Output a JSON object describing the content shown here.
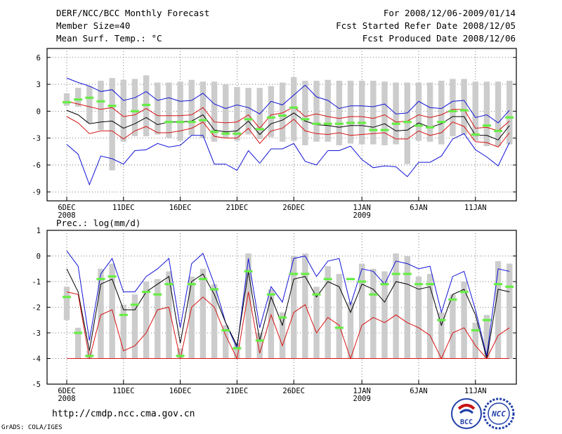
{
  "header": {
    "title": "DERF/NCC/BCC Monthly Forecast",
    "member_size": "Member Size=40",
    "variable": "Mean Surf. Temp.: °C",
    "forecast_period": "For 2008/12/06-2009/01/14",
    "started_refer": "Fcst Started Refer Date 2008/12/05",
    "produced": "Fcst Produced Date 2008/12/06"
  },
  "precip_label": "Prec.: log(mm/d)",
  "footer": {
    "url": "http://cmdp.ncc.cma.gov.cn",
    "grads": "GrADS: COLA/IGES",
    "logo_bcc": "BCC",
    "logo_ncc": "NCC"
  },
  "colors": {
    "blue": "#1414d8",
    "red": "#d81414",
    "black": "#000000",
    "green": "#66ee44",
    "bar": "#cccccc"
  },
  "chart_data": [
    {
      "type": "line",
      "title": "Mean Surf. Temp.: °C",
      "ylim": [
        -10,
        7
      ],
      "yticks": [
        6,
        3,
        0,
        -3,
        -6,
        -9
      ],
      "x_tick_labels": [
        {
          "day": 0,
          "label": "6DEC",
          "sub": "2008"
        },
        {
          "day": 5,
          "label": "11DEC"
        },
        {
          "day": 10,
          "label": "16DEC"
        },
        {
          "day": 15,
          "label": "21DEC"
        },
        {
          "day": 20,
          "label": "26DEC"
        },
        {
          "day": 26,
          "label": "1JAN",
          "sub": "2009"
        },
        {
          "day": 31,
          "label": "6JAN"
        },
        {
          "day": 36,
          "label": "11JAN"
        }
      ],
      "series": [
        {
          "name": "ensemble max",
          "color": "blue",
          "values": [
            3.7,
            3.2,
            2.8,
            2.2,
            2.4,
            1.2,
            1.5,
            2.2,
            1.2,
            1.5,
            1.1,
            1.2,
            2.0,
            0.8,
            0.3,
            0.7,
            0.4,
            -0.3,
            1.1,
            0.7,
            1.8,
            2.9,
            1.6,
            1.2,
            0.3,
            0.6,
            0.6,
            0.5,
            0.8,
            -0.3,
            -0.2,
            1.1,
            0.4,
            0.3,
            1.1,
            1.2,
            -0.7,
            -0.4,
            -1.3,
            0.1
          ]
        },
        {
          "name": "upper",
          "color": "red",
          "values": [
            1.1,
            0.8,
            0.5,
            0.2,
            0.4,
            -0.6,
            -0.4,
            0.3,
            -0.5,
            -0.5,
            -0.5,
            -0.4,
            0.4,
            -1.2,
            -1.3,
            -1.2,
            -0.4,
            -1.9,
            -0.4,
            -0.2,
            0.5,
            -0.6,
            -0.3,
            -0.6,
            -0.8,
            -0.6,
            -0.6,
            -0.8,
            -0.4,
            -1.2,
            -1.1,
            -0.4,
            -0.7,
            -0.4,
            0.2,
            0.2,
            -1.9,
            -1.8,
            -2.2,
            -1.1
          ]
        },
        {
          "name": "ensemble mean",
          "color": "black",
          "values": [
            0.1,
            -0.4,
            -1.4,
            -1.2,
            -1.1,
            -1.9,
            -1.4,
            -0.7,
            -1.5,
            -1.2,
            -1.2,
            -1.1,
            -0.4,
            -2.1,
            -2.3,
            -2.2,
            -1.1,
            -2.6,
            -1.4,
            -1.0,
            -0.2,
            -1.1,
            -1.5,
            -1.6,
            -1.8,
            -1.6,
            -1.6,
            -1.8,
            -1.4,
            -2.2,
            -2.1,
            -1.3,
            -1.8,
            -1.4,
            -0.6,
            -0.6,
            -2.7,
            -2.7,
            -3.2,
            -1.6
          ]
        },
        {
          "name": "lower",
          "color": "red",
          "values": [
            -0.6,
            -1.3,
            -2.5,
            -2.2,
            -2.2,
            -3.1,
            -2.2,
            -1.7,
            -2.4,
            -2.4,
            -2.2,
            -1.9,
            -1.2,
            -2.8,
            -3.0,
            -3.0,
            -1.9,
            -3.6,
            -2.2,
            -1.9,
            -0.9,
            -2.2,
            -2.5,
            -2.6,
            -2.4,
            -2.7,
            -2.6,
            -2.5,
            -2.4,
            -3.1,
            -3.1,
            -2.2,
            -2.7,
            -2.4,
            -1.2,
            -1.7,
            -3.4,
            -3.5,
            -4.0,
            -2.4
          ]
        },
        {
          "name": "ensemble min",
          "color": "blue",
          "values": [
            -3.7,
            -4.8,
            -8.2,
            -5.0,
            -5.3,
            -5.9,
            -4.4,
            -4.3,
            -3.6,
            -4.0,
            -3.8,
            -2.7,
            -2.7,
            -5.9,
            -5.9,
            -6.6,
            -4.4,
            -5.8,
            -4.2,
            -4.2,
            -3.6,
            -5.6,
            -6.0,
            -4.4,
            -4.4,
            -3.9,
            -5.4,
            -6.3,
            -6.1,
            -6.2,
            -7.3,
            -5.7,
            -5.7,
            -5.0,
            -3.1,
            -2.5,
            -4.3,
            -5.1,
            -6.1,
            -3.5
          ]
        },
        {
          "name": "observation",
          "color": "green",
          "values": [
            1.0,
            1.3,
            1.5,
            1.1,
            0.6,
            null,
            0.0,
            0.7,
            null,
            -1.2,
            -1.2,
            -1.2,
            -1.0,
            -2.3,
            -2.5,
            -2.5,
            -0.9,
            -2.0,
            -0.7,
            -0.5,
            0.4,
            -0.9,
            -1.4,
            -1.4,
            -1.4,
            -1.3,
            -1.3,
            -2.1,
            -2.1,
            -1.4,
            -1.2,
            -1.6,
            -1.8,
            -1.2,
            0.0,
            0.1,
            -2.6,
            -1.6,
            -2.2,
            -0.7
          ]
        }
      ],
      "bars": {
        "name": "observed range",
        "color": "bar",
        "high": [
          2.0,
          2.6,
          2.8,
          3.4,
          3.7,
          3.5,
          3.6,
          4.0,
          3.2,
          3.2,
          3.3,
          3.5,
          3.3,
          3.3,
          3.0,
          2.7,
          2.6,
          2.6,
          2.8,
          3.2,
          3.8,
          3.4,
          3.4,
          3.5,
          3.4,
          3.4,
          3.4,
          3.4,
          3.3,
          3.2,
          3.2,
          3.2,
          3.2,
          3.4,
          3.6,
          3.6,
          3.3,
          3.3,
          3.3,
          3.4
        ],
        "low": [
          0.6,
          0.5,
          -1.3,
          -2.1,
          -6.6,
          -3.4,
          -2.8,
          -2.8,
          -2.6,
          -3.0,
          -3.3,
          -2.7,
          -3.0,
          -3.4,
          -3.0,
          -3.3,
          -2.6,
          -3.1,
          -2.9,
          -3.4,
          -3.3,
          -3.8,
          -3.4,
          -3.4,
          -3.8,
          -3.6,
          -3.7,
          -3.7,
          -3.8,
          -3.7,
          -5.9,
          -3.3,
          -3.4,
          -3.7,
          -2.8,
          -2.6,
          -3.3,
          -3.9,
          -3.9,
          -3.7
        ]
      }
    },
    {
      "type": "line",
      "title": "Prec.: log(mm/d)",
      "ylim": [
        -5,
        1
      ],
      "yticks": [
        1,
        0,
        -1,
        -2,
        -3,
        -4,
        -5
      ],
      "x_tick_labels": [
        {
          "day": 0,
          "label": "6DEC",
          "sub": "2008"
        },
        {
          "day": 5,
          "label": "11DEC"
        },
        {
          "day": 10,
          "label": "16DEC"
        },
        {
          "day": 15,
          "label": "21DEC"
        },
        {
          "day": 20,
          "label": "26DEC"
        },
        {
          "day": 26,
          "label": "1JAN",
          "sub": "2009"
        },
        {
          "day": 31,
          "label": "6JAN"
        },
        {
          "day": 36,
          "label": "11JAN"
        }
      ],
      "series": [
        {
          "name": "ensemble max",
          "color": "blue",
          "values": [
            0.2,
            -0.4,
            -3.3,
            -0.7,
            -0.1,
            -1.4,
            -1.4,
            -0.8,
            -0.5,
            -0.1,
            -2.8,
            -0.3,
            0.1,
            -1.1,
            -2.6,
            -3.6,
            -0.1,
            -2.8,
            -1.2,
            -1.8,
            -0.1,
            0.0,
            -0.8,
            -0.2,
            -0.1,
            -1.9,
            -0.5,
            -0.6,
            -1.1,
            -0.2,
            -0.3,
            -0.5,
            -0.4,
            -2.2,
            -0.8,
            -0.6,
            -2.1,
            -3.9,
            -0.5,
            -0.6
          ]
        },
        {
          "name": "ensemble mean",
          "color": "black",
          "values": [
            -0.5,
            -1.4,
            -3.7,
            -1.1,
            -0.9,
            -2.1,
            -2.1,
            -1.4,
            -1.1,
            -0.8,
            -3.4,
            -1.0,
            -0.7,
            -1.5,
            -2.6,
            -3.5,
            -0.6,
            -3.3,
            -1.6,
            -2.7,
            -0.9,
            -0.8,
            -1.6,
            -1.0,
            -1.2,
            -2.2,
            -1.1,
            -1.3,
            -1.8,
            -1.0,
            -1.1,
            -1.3,
            -1.2,
            -2.7,
            -1.5,
            -1.3,
            -2.3,
            -4.0,
            -1.3,
            -1.4
          ]
        },
        {
          "name": "lower",
          "color": "red",
          "values": [
            -1.4,
            -1.5,
            -4.0,
            -2.3,
            -2.1,
            -3.7,
            -3.5,
            -3.0,
            -2.1,
            -2.0,
            -4.0,
            -2.0,
            -1.6,
            -2.0,
            -3.1,
            -4.0,
            -1.4,
            -3.8,
            -2.3,
            -3.5,
            -2.2,
            -1.9,
            -3.0,
            -2.4,
            -2.7,
            -4.0,
            -2.7,
            -2.4,
            -2.6,
            -2.3,
            -2.6,
            -2.8,
            -3.1,
            -4.0,
            -3.0,
            -2.8,
            -3.5,
            -4.0,
            -3.1,
            -2.8
          ]
        },
        {
          "name": "floor",
          "color": "red",
          "values": [
            -4,
            -4,
            -4,
            -4,
            -4,
            -4,
            -4,
            -4,
            -4,
            -4,
            -4,
            -4,
            -4,
            -4,
            -4,
            -4,
            -4,
            -4,
            -4,
            -4,
            -4,
            -4,
            -4,
            -4,
            -4,
            -4,
            -4,
            -4,
            -4,
            -4,
            -4,
            -4,
            -4,
            -4,
            -4,
            -4,
            -4,
            -4,
            -4,
            -4
          ]
        },
        {
          "name": "observation",
          "color": "green",
          "values": [
            -1.6,
            -3.0,
            -3.9,
            -0.9,
            -0.8,
            -2.3,
            -1.9,
            -1.4,
            -1.5,
            -1.1,
            -3.9,
            -1.1,
            -0.9,
            -1.3,
            -2.9,
            -3.6,
            -0.6,
            -3.3,
            -1.5,
            -2.4,
            -0.7,
            -0.7,
            -1.5,
            -0.9,
            -2.8,
            -0.9,
            -1.0,
            -1.5,
            -1.1,
            -0.7,
            -0.7,
            -1.1,
            -1.1,
            -2.5,
            -1.7,
            -1.4,
            -2.9,
            -2.5,
            -1.1,
            -1.2
          ]
        }
      ],
      "bars": {
        "name": "observed range",
        "color": "bar",
        "high": [
          -1.2,
          -2.8,
          -3.7,
          -0.5,
          -0.3,
          -1.9,
          -1.5,
          -1.0,
          -0.9,
          -0.6,
          -3.6,
          -0.8,
          -0.5,
          -1.1,
          -2.7,
          -3.4,
          0.1,
          -3.0,
          -1.3,
          -2.2,
          0.0,
          0.1,
          -1.2,
          -0.4,
          -0.7,
          -1.8,
          -0.3,
          -0.5,
          -0.6,
          0.1,
          0.0,
          -0.8,
          -0.7,
          -2.2,
          -1.5,
          -1.0,
          -2.6,
          -2.3,
          -0.2,
          -0.3
        ],
        "low": [
          -2.5,
          -4.0,
          -4.0,
          -4.0,
          -4.0,
          -4.0,
          -4.0,
          -4.0,
          -4.0,
          -4.0,
          -4.0,
          -4.0,
          -4.0,
          -4.0,
          -4.0,
          -4.0,
          -4.0,
          -4.0,
          -4.0,
          -4.0,
          -4.0,
          -4.0,
          -4.0,
          -4.0,
          -4.0,
          -4.0,
          -4.0,
          -4.0,
          -4.0,
          -4.0,
          -4.0,
          -4.0,
          -4.0,
          -4.0,
          -4.0,
          -4.0,
          -4.0,
          -4.0,
          -4.0,
          -4.0
        ]
      }
    }
  ]
}
